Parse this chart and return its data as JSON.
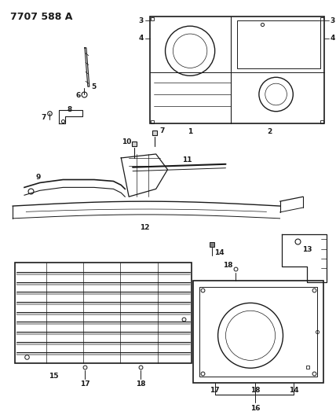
{
  "title": "7707 588 A",
  "bg_color": "#ffffff",
  "line_color": "#1a1a1a",
  "title_fontsize": 9,
  "label_fontsize": 6.5,
  "figsize": [
    4.28,
    5.33
  ],
  "dpi": 100
}
